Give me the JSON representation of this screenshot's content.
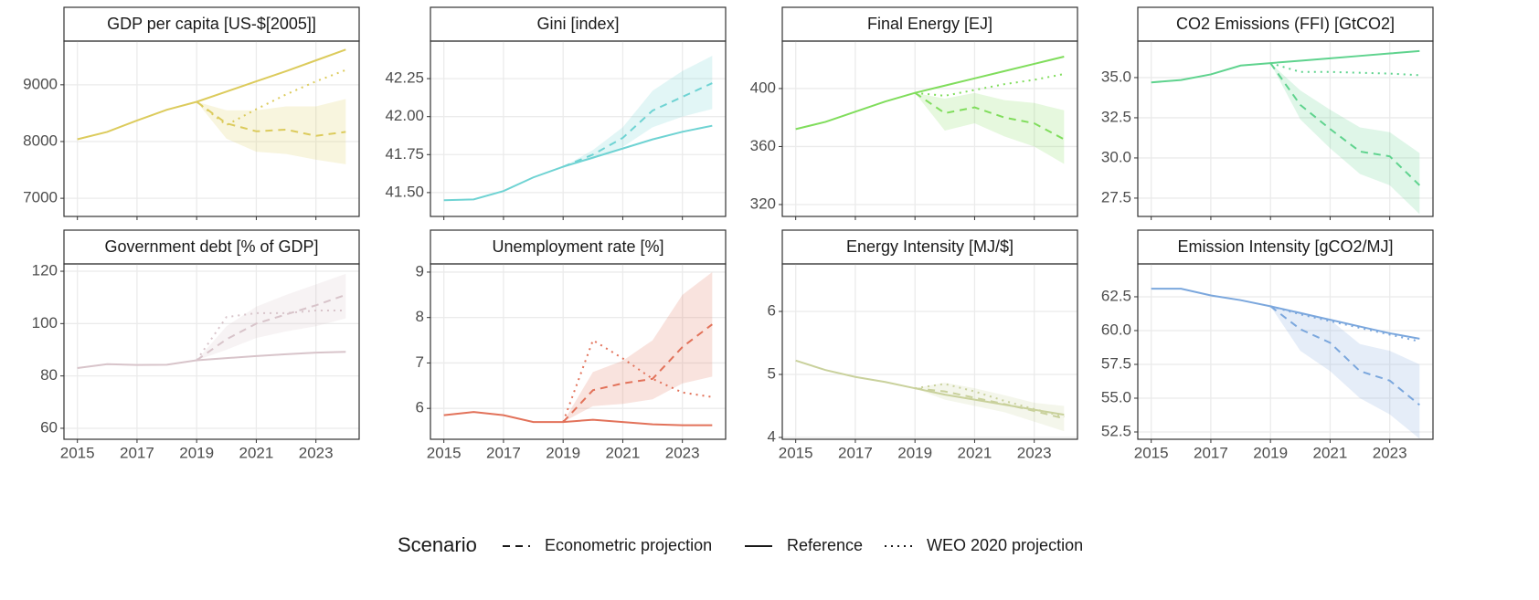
{
  "chart_data": [
    {
      "type": "line",
      "title": "GDP per capita [US-$[2005]]",
      "color": "#dccb5c",
      "x": [
        2015,
        2016,
        2017,
        2018,
        2019,
        2020,
        2021,
        2022,
        2023,
        2024
      ],
      "reference": [
        8040,
        8170,
        8370,
        8560,
        8700,
        8880,
        9060,
        9240,
        9430,
        9620
      ],
      "econometric": [
        null,
        null,
        null,
        null,
        8700,
        8320,
        8180,
        8210,
        8100,
        8170
      ],
      "econometric_low": [
        null,
        null,
        null,
        null,
        8700,
        8050,
        7820,
        7780,
        7680,
        7600
      ],
      "econometric_high": [
        null,
        null,
        null,
        null,
        8700,
        8550,
        8550,
        8620,
        8620,
        8750
      ],
      "weo": [
        null,
        null,
        null,
        null,
        8700,
        8290,
        8570,
        8830,
        9060,
        9260
      ],
      "xlim": [
        2014.55,
        2024.45
      ],
      "xticks": [
        2015,
        2017,
        2019,
        2021,
        2023
      ],
      "ylim": [
        6680,
        9770
      ],
      "yticks": [
        7000,
        8000,
        9000
      ],
      "grid": true
    },
    {
      "type": "line",
      "title": "Gini [index]",
      "color": "#6fd3d3",
      "x": [
        2015,
        2016,
        2017,
        2018,
        2019,
        2020,
        2021,
        2022,
        2023,
        2024
      ],
      "reference": [
        41.45,
        41.455,
        41.51,
        41.6,
        41.67,
        41.73,
        41.79,
        41.85,
        41.9,
        41.94
      ],
      "econometric": [
        null,
        null,
        null,
        null,
        41.67,
        41.75,
        41.86,
        42.04,
        42.13,
        42.22
      ],
      "econometric_low": [
        null,
        null,
        null,
        null,
        41.67,
        41.72,
        41.8,
        41.93,
        42.0,
        42.05
      ],
      "econometric_high": [
        null,
        null,
        null,
        null,
        41.67,
        41.78,
        41.93,
        42.17,
        42.3,
        42.4
      ],
      "xlim": [
        2014.55,
        2024.45
      ],
      "xticks": [
        2015,
        2017,
        2019,
        2021,
        2023
      ],
      "ylim": [
        41.343,
        42.497
      ],
      "yticks": [
        {
          "value": 41.5,
          "label": "41.50"
        },
        41.75,
        {
          "value": 42.0,
          "label": "42.00"
        },
        42.25
      ],
      "grid": true
    },
    {
      "type": "line",
      "title": "Final Energy [EJ]",
      "color": "#80dd5c",
      "x": [
        2015,
        2016,
        2017,
        2018,
        2019,
        2020,
        2021,
        2022,
        2023,
        2024
      ],
      "reference": [
        372,
        377,
        384,
        391,
        397,
        402,
        407,
        412,
        417,
        422
      ],
      "econometric": [
        null,
        null,
        null,
        null,
        397,
        383,
        387,
        380,
        376,
        365
      ],
      "econometric_low": [
        null,
        null,
        null,
        null,
        397,
        371,
        376,
        367,
        360,
        348
      ],
      "econometric_high": [
        null,
        null,
        null,
        null,
        397,
        393,
        397,
        392,
        390,
        385
      ],
      "weo": [
        null,
        null,
        null,
        null,
        397,
        395,
        399,
        403,
        406,
        410
      ],
      "xlim": [
        2014.55,
        2024.45
      ],
      "xticks": [
        2015,
        2017,
        2019,
        2021,
        2023
      ],
      "ylim": [
        311.8,
        432.7
      ],
      "yticks": [
        320,
        360,
        400
      ],
      "grid": true
    },
    {
      "type": "line",
      "title": "CO2 Emissions (FFI) [GtCO2]",
      "color": "#5fd38e",
      "x": [
        2015,
        2016,
        2017,
        2018,
        2019,
        2020,
        2021,
        2022,
        2023,
        2024
      ],
      "reference": [
        34.7,
        34.85,
        35.2,
        35.75,
        35.9,
        36.05,
        36.2,
        36.35,
        36.5,
        36.65
      ],
      "econometric": [
        null,
        null,
        null,
        null,
        35.9,
        33.3,
        31.8,
        30.4,
        30.1,
        28.3
      ],
      "econometric_low": [
        null,
        null,
        null,
        null,
        35.9,
        32.4,
        30.6,
        29.0,
        28.3,
        26.5
      ],
      "econometric_high": [
        null,
        null,
        null,
        null,
        35.9,
        34.2,
        33.0,
        31.9,
        31.6,
        30.3
      ],
      "weo": [
        null,
        null,
        null,
        null,
        35.9,
        35.35,
        35.35,
        35.3,
        35.25,
        35.15
      ],
      "xlim": [
        2014.55,
        2024.45
      ],
      "xticks": [
        2015,
        2017,
        2019,
        2021,
        2023
      ],
      "ylim": [
        26.36,
        37.27
      ],
      "yticks": [
        27.5,
        {
          "value": 30,
          "label": "30.0"
        },
        32.5,
        {
          "value": 35,
          "label": "35.0"
        }
      ],
      "grid": true
    },
    {
      "type": "line",
      "title": "Government debt [% of GDP]",
      "color": "#d8c4ca",
      "x": [
        2015,
        2016,
        2017,
        2018,
        2019,
        2020,
        2021,
        2022,
        2023,
        2024
      ],
      "reference": [
        83,
        84.5,
        84.2,
        84.3,
        86,
        86.8,
        87.6,
        88.3,
        88.9,
        89.2
      ],
      "econometric": [
        null,
        null,
        null,
        null,
        86,
        94,
        100,
        103.5,
        107,
        111
      ],
      "econometric_low": [
        null,
        null,
        null,
        null,
        86,
        90,
        94.5,
        97,
        99,
        102
      ],
      "econometric_high": [
        null,
        null,
        null,
        null,
        86,
        99,
        106.5,
        111,
        115,
        119
      ],
      "weo": [
        null,
        null,
        null,
        null,
        86,
        102.5,
        104,
        104,
        105,
        105
      ],
      "xlim": [
        2014.55,
        2024.45
      ],
      "xticks": [
        2015,
        2017,
        2019,
        2021,
        2023
      ],
      "ylim": [
        55.8,
        122.8
      ],
      "yticks": [
        60,
        80,
        100,
        120
      ],
      "grid": true
    },
    {
      "type": "line",
      "title": "Unemployment rate [%]",
      "color": "#e2725a",
      "x": [
        2015,
        2016,
        2017,
        2018,
        2019,
        2020,
        2021,
        2022,
        2023,
        2024
      ],
      "reference": [
        5.85,
        5.92,
        5.85,
        5.7,
        5.7,
        5.75,
        5.7,
        5.65,
        5.63,
        5.63
      ],
      "econometric": [
        null,
        null,
        null,
        null,
        5.7,
        6.4,
        6.55,
        6.65,
        7.35,
        7.85
      ],
      "econometric_low": [
        null,
        null,
        null,
        null,
        5.7,
        6.05,
        6.1,
        6.2,
        6.55,
        6.7
      ],
      "econometric_high": [
        null,
        null,
        null,
        null,
        5.7,
        6.8,
        7.05,
        7.5,
        8.5,
        9.0
      ],
      "weo": [
        null,
        null,
        null,
        null,
        5.7,
        7.5,
        7.1,
        6.65,
        6.35,
        6.25
      ],
      "xlim": [
        2014.55,
        2024.45
      ],
      "xticks": [
        2015,
        2017,
        2019,
        2021,
        2023
      ],
      "ylim": [
        5.32,
        9.18
      ],
      "yticks": [
        6,
        7,
        8,
        9
      ],
      "grid": true
    },
    {
      "type": "line",
      "title": "Energy Intensity [MJ/$]",
      "color": "#c9d19c",
      "x": [
        2015,
        2016,
        2017,
        2018,
        2019,
        2020,
        2021,
        2022,
        2023,
        2024
      ],
      "reference": [
        5.22,
        5.07,
        4.96,
        4.88,
        4.78,
        4.68,
        4.6,
        4.52,
        4.44,
        4.36
      ],
      "econometric": [
        null,
        null,
        null,
        null,
        4.78,
        4.73,
        4.63,
        4.53,
        4.42,
        4.3
      ],
      "econometric_low": [
        null,
        null,
        null,
        null,
        4.78,
        4.6,
        4.5,
        4.4,
        4.25,
        4.1
      ],
      "econometric_high": [
        null,
        null,
        null,
        null,
        4.78,
        4.87,
        4.78,
        4.67,
        4.55,
        4.5
      ],
      "weo": [
        null,
        null,
        null,
        null,
        4.78,
        4.85,
        4.73,
        4.58,
        4.45,
        4.33
      ],
      "xlim": [
        2014.55,
        2024.45
      ],
      "xticks": [
        2015,
        2017,
        2019,
        2021,
        2023
      ],
      "ylim": [
        3.971,
        6.754
      ],
      "yticks": [
        4,
        5,
        6
      ],
      "grid": true
    },
    {
      "type": "line",
      "title": "Emission Intensity [gCO2/MJ]",
      "color": "#7ba7dd",
      "x": [
        2015,
        2016,
        2017,
        2018,
        2019,
        2020,
        2021,
        2022,
        2023,
        2024
      ],
      "reference": [
        63.1,
        63.1,
        62.6,
        62.25,
        61.8,
        61.3,
        60.8,
        60.3,
        59.8,
        59.4
      ],
      "econometric": [
        null,
        null,
        null,
        null,
        61.8,
        60.1,
        59.1,
        57.0,
        56.3,
        54.5
      ],
      "econometric_low": [
        null,
        null,
        null,
        null,
        61.8,
        58.5,
        57.0,
        55.0,
        53.8,
        52.0
      ],
      "econometric_high": [
        null,
        null,
        null,
        null,
        61.8,
        61.4,
        60.8,
        59.0,
        58.5,
        57.5
      ],
      "weo": [
        null,
        null,
        null,
        null,
        61.8,
        61.2,
        60.7,
        60.2,
        59.7,
        59.2
      ],
      "xlim": [
        2014.55,
        2024.45
      ],
      "xticks": [
        2015,
        2017,
        2019,
        2021,
        2023
      ],
      "ylim": [
        51.96,
        64.93
      ],
      "yticks": [
        52.5,
        {
          "value": 55,
          "label": "55.0"
        },
        57.5,
        {
          "value": 60,
          "label": "60.0"
        },
        62.5
      ],
      "grid": true
    }
  ],
  "legend": {
    "title": "Scenario",
    "entries": [
      {
        "name": "Econometric projection",
        "dash": "dashed"
      },
      {
        "name": "Reference",
        "dash": "solid"
      },
      {
        "name": "WEO 2020 projection",
        "dash": "dotted"
      }
    ]
  }
}
